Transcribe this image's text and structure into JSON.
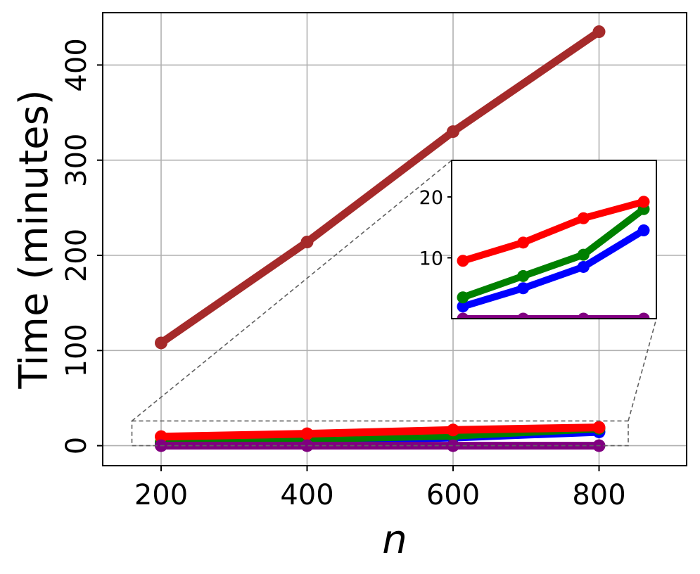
{
  "chart_data": {
    "type": "line",
    "title": "",
    "xlabel": "n",
    "ylabel": "Time (minutes)",
    "x": [
      200,
      400,
      600,
      800
    ],
    "xticks": [
      "200",
      "400",
      "600",
      "800"
    ],
    "yticks": [
      "0",
      "100",
      "200",
      "300",
      "400"
    ],
    "xlim": [
      120,
      920
    ],
    "ylim": [
      -21,
      455
    ],
    "grid": true,
    "legend": "none",
    "series": [
      {
        "color": "#a52a2a",
        "values": [
          108,
          214,
          330,
          435
        ]
      },
      {
        "color": "#0000ff",
        "values": [
          2.0,
          5.0,
          8.5,
          14.5
        ]
      },
      {
        "color": "#008000",
        "values": [
          3.5,
          7.0,
          10.5,
          18.0
        ]
      },
      {
        "color": "#ff0000",
        "values": [
          9.5,
          12.5,
          16.5,
          19.2
        ]
      },
      {
        "color": "#800080",
        "values": [
          0.0,
          0.0,
          0.0,
          0.0
        ]
      }
    ],
    "inset": {
      "xlim": [
        200,
        800
      ],
      "ylim": [
        0,
        26
      ],
      "yticks": [
        "10",
        "20"
      ],
      "zoom_region": {
        "x": [
          160,
          840
        ],
        "y": [
          0,
          26
        ]
      }
    }
  }
}
